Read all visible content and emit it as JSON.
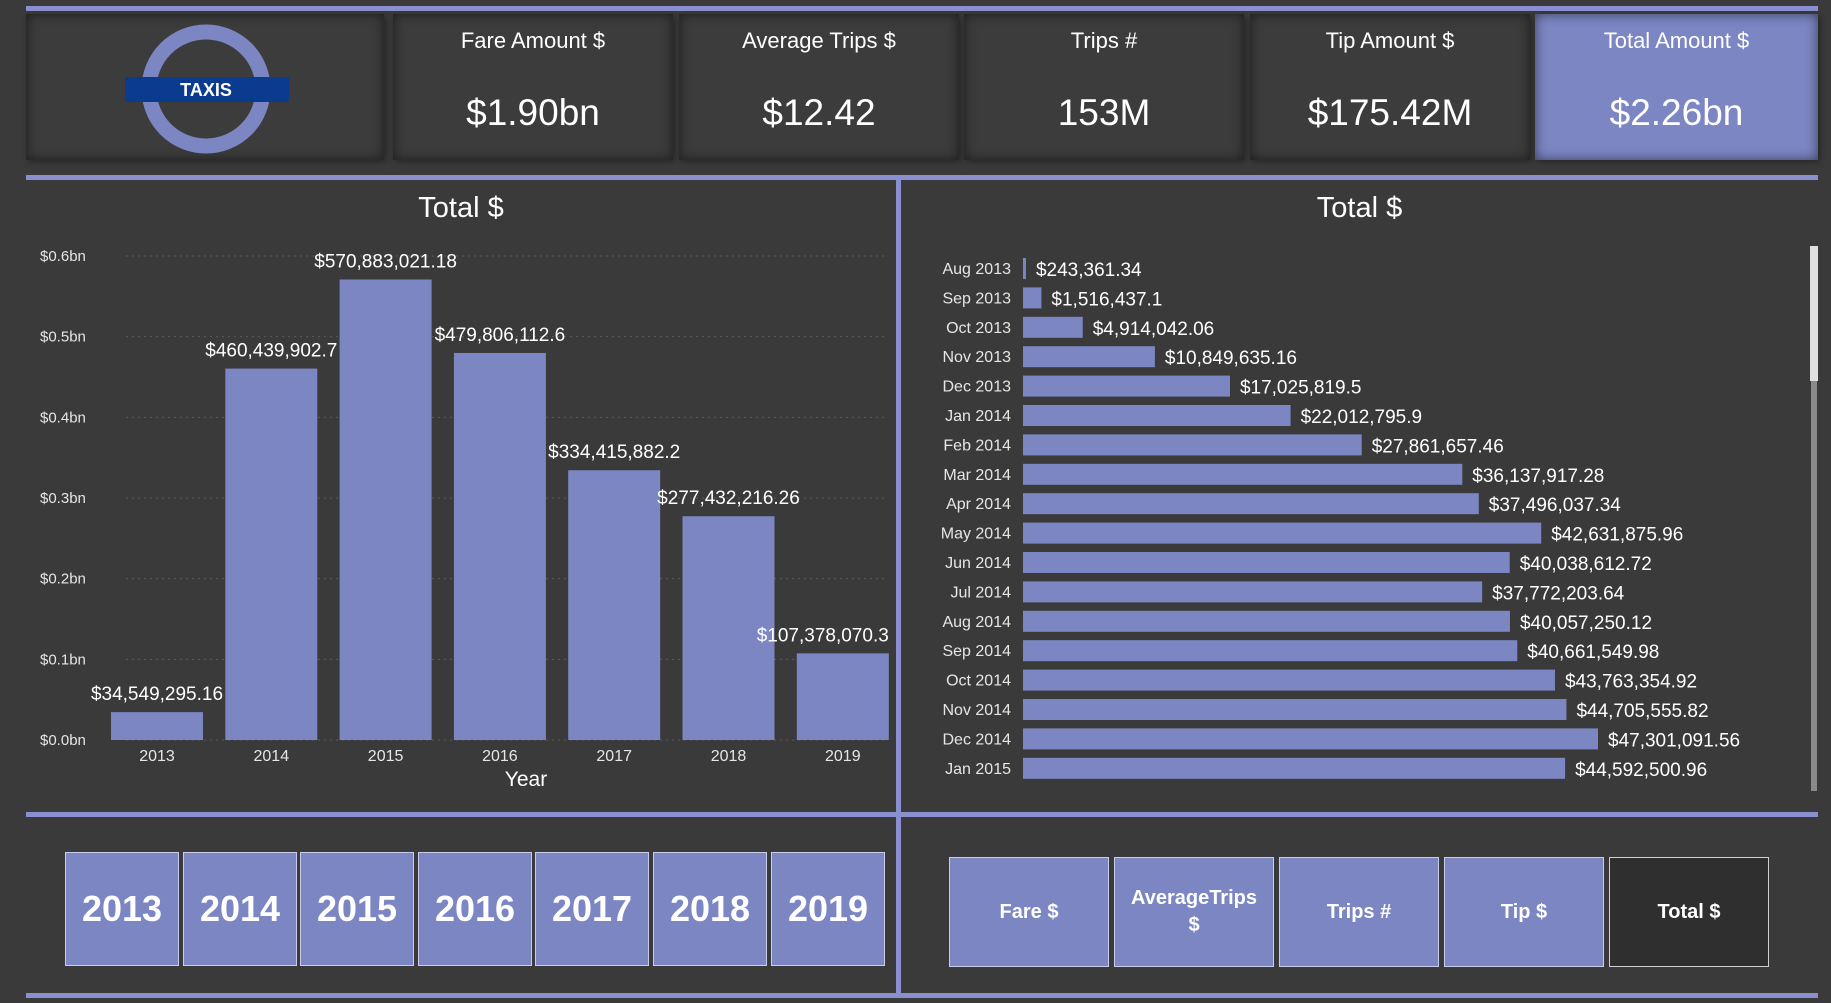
{
  "logo": {
    "text": "TAXIS",
    "ring_color": "#7c86c3",
    "bar_color": "#0b3b8f"
  },
  "kpis": [
    {
      "title": "Fare Amount $",
      "value": "$1.90bn",
      "active": false
    },
    {
      "title": "Average Trips $",
      "value": "$12.42",
      "active": false
    },
    {
      "title": "Trips #",
      "value": "153M",
      "active": false
    },
    {
      "title": "Tip Amount $",
      "value": "$175.42M",
      "active": false
    },
    {
      "title": "Total Amount $",
      "value": "$2.26bn",
      "active": true
    }
  ],
  "colors": {
    "accent": "#8a8fd0",
    "bar": "#7c86c3",
    "background": "#3a3a3a"
  },
  "chart_data": [
    {
      "type": "bar",
      "title": "Total $",
      "xlabel": "Year",
      "ylabel": "",
      "categories": [
        "2013",
        "2014",
        "2015",
        "2016",
        "2017",
        "2018",
        "2019"
      ],
      "values": [
        34549295.16,
        460439902.7,
        570883021.18,
        479806112.6,
        334415882.2,
        277432216.26,
        107378070.3
      ],
      "data_labels": [
        "$34,549,295.16",
        "$460,439,902.7",
        "$570,883,021.18",
        "$479,806,112.6",
        "$334,415,882.2",
        "$277,432,216.26",
        "$107,378,070.3"
      ],
      "ylim": [
        0,
        0.6
      ],
      "yunits": "bn",
      "yticks": [
        0,
        0.1,
        0.2,
        0.3,
        0.4,
        0.5,
        0.6
      ],
      "ytick_labels": [
        "$0.0bn",
        "$0.1bn",
        "$0.2bn",
        "$0.3bn",
        "$0.4bn",
        "$0.5bn",
        "$0.6bn"
      ],
      "grid": true
    },
    {
      "type": "bar",
      "orientation": "horizontal",
      "title": "Total $",
      "categories": [
        "Aug 2013",
        "Sep 2013",
        "Oct 2013",
        "Nov 2013",
        "Dec 2013",
        "Jan 2014",
        "Feb 2014",
        "Mar 2014",
        "Apr 2014",
        "May 2014",
        "Jun 2014",
        "Jul 2014",
        "Aug 2014",
        "Sep 2014",
        "Oct 2014",
        "Nov 2014",
        "Dec 2014",
        "Jan 2015"
      ],
      "values": [
        243361.34,
        1516437.1,
        4914042.06,
        10849635.16,
        17025819.5,
        22012795.9,
        27861657.46,
        36137917.28,
        37496037.34,
        42631875.96,
        40038612.72,
        37772203.64,
        40057250.12,
        40661549.98,
        43763354.92,
        44705555.82,
        47301091.56,
        44592500.96
      ],
      "data_labels": [
        "$243,361.34",
        "$1,516,437.1",
        "$4,914,042.06",
        "$10,849,635.16",
        "$17,025,819.5",
        "$22,012,795.9",
        "$27,861,657.46",
        "$36,137,917.28",
        "$37,496,037.34",
        "$42,631,875.96",
        "$40,038,612.72",
        "$37,772,203.64",
        "$40,057,250.12",
        "$40,661,549.98",
        "$43,763,354.92",
        "$44,705,555.82",
        "$47,301,091.56",
        "$44,592,500.96"
      ],
      "xlim": [
        0,
        47301091.56
      ],
      "grid": false
    }
  ],
  "year_slicer": [
    "2013",
    "2014",
    "2015",
    "2016",
    "2017",
    "2018",
    "2019"
  ],
  "metric_slicer": [
    {
      "label": "Fare $",
      "selected": false
    },
    {
      "label": "AverageTrips $",
      "selected": false
    },
    {
      "label": "Trips #",
      "selected": false
    },
    {
      "label": "Tip $",
      "selected": false
    },
    {
      "label": "Total $",
      "selected": true
    }
  ]
}
